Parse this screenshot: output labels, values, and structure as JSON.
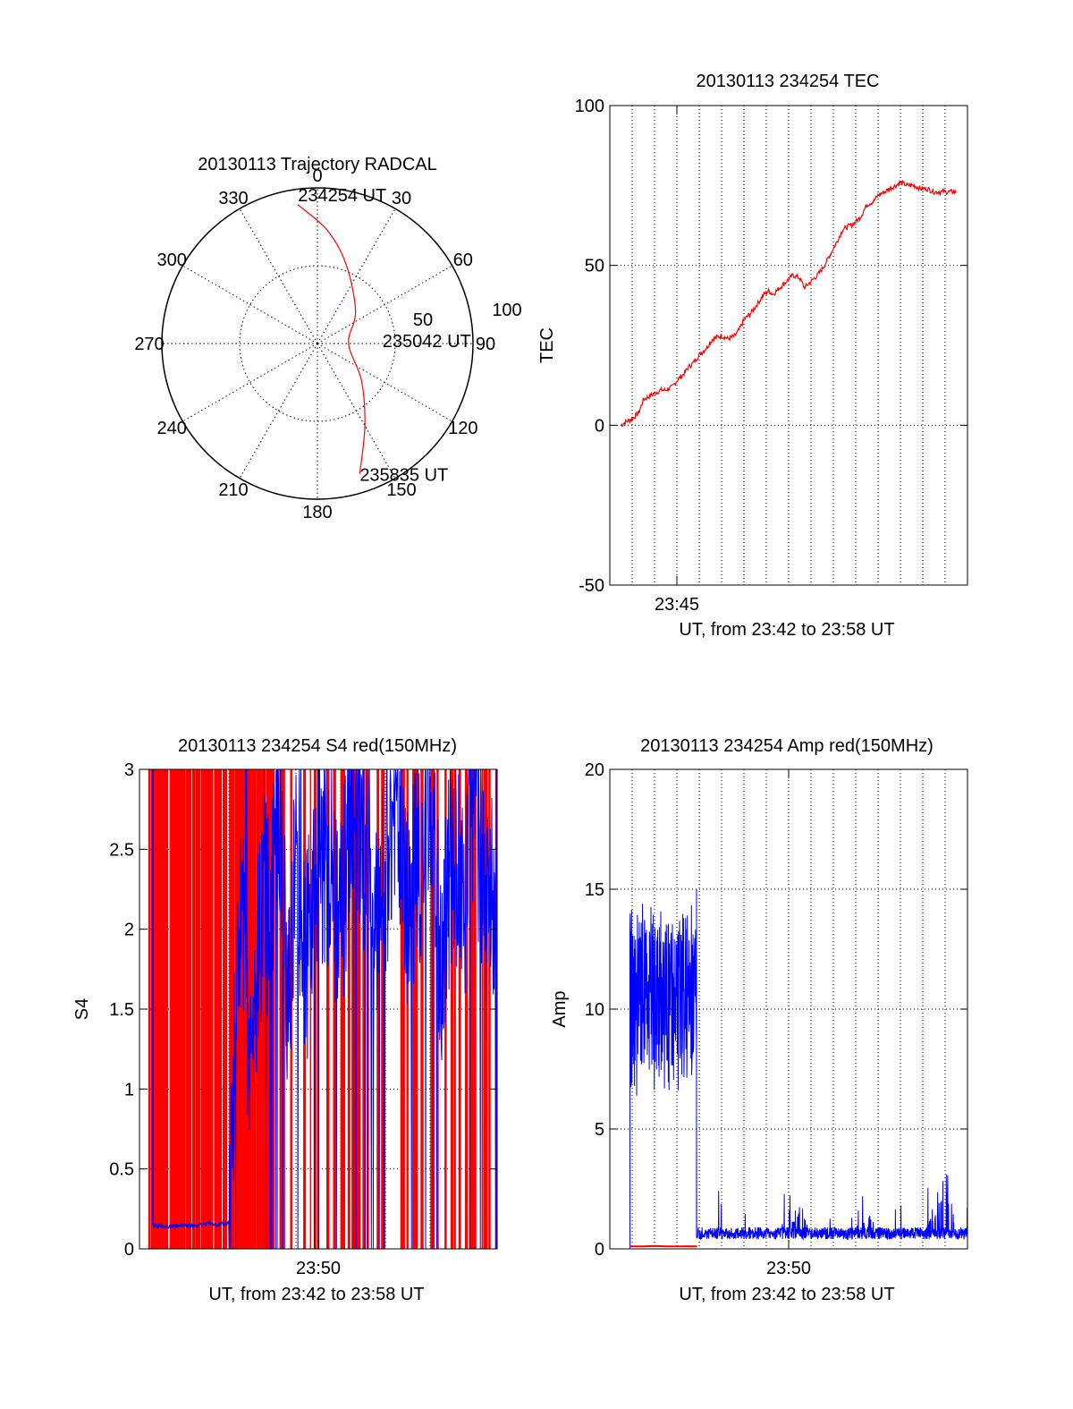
{
  "colors": {
    "red": "#ff0000",
    "blue": "#0000ff",
    "grid": "#000000"
  },
  "chart_data": [
    {
      "id": "trajectory",
      "type": "polar",
      "title": "20130113 Trajectory RADCAL",
      "angle_labels": [
        "0",
        "30",
        "60",
        "90",
        "120",
        "150",
        "180",
        "210",
        "240",
        "270",
        "300",
        "330"
      ],
      "radial_labels": [
        "50",
        "100"
      ],
      "rmax": 100,
      "trajectory": [
        {
          "az": 352,
          "r": 90
        },
        {
          "az": 5,
          "r": 73
        },
        {
          "az": 20,
          "r": 54
        },
        {
          "az": 50,
          "r": 32
        },
        {
          "az": 90,
          "r": 20
        },
        {
          "az": 130,
          "r": 37
        },
        {
          "az": 150,
          "r": 61
        },
        {
          "az": 162,
          "r": 88
        }
      ],
      "annotations": [
        {
          "text": "234254 UT",
          "az": 352,
          "r": 90
        },
        {
          "text": "235042 UT",
          "az": 90,
          "r": 20
        },
        {
          "text": "235835 UT",
          "az": 162,
          "r": 88
        }
      ]
    },
    {
      "id": "tec",
      "type": "line",
      "title": "20130113 234254 TEC",
      "xlabel": "UT, from 23:42 to 23:58 UT",
      "ylabel": "TEC",
      "ylim": [
        -50,
        100
      ],
      "yticks": [
        -50,
        0,
        50,
        100
      ],
      "xtick_label": "23:45",
      "series": [
        {
          "x": [
            0.5,
            0.7,
            1.0,
            1.3,
            1.5,
            2.0,
            2.3,
            2.5,
            2.8,
            3.0,
            3.3,
            3.5,
            3.8,
            4.0,
            4.3,
            4.6,
            5.0,
            5.3,
            5.6,
            5.8,
            6.0,
            6.3,
            6.6,
            6.9,
            7.1,
            7.3,
            7.6,
            7.9,
            8.2,
            8.5,
            8.7,
            9.0,
            9.3,
            9.6,
            9.9,
            10.2,
            10.4,
            10.6,
            10.9,
            11.2,
            11.5,
            11.8,
            12.0,
            12.3,
            12.5,
            12.8,
            13.0,
            13.3,
            13.6,
            13.9,
            14.2,
            14.5,
            14.7,
            15.0,
            15.3,
            15.5
          ],
          "y": [
            0,
            1,
            2,
            4,
            8,
            10,
            11,
            11,
            12,
            14,
            16,
            18,
            20,
            22,
            24,
            27,
            28,
            27,
            28,
            30,
            33,
            35,
            38,
            41,
            42,
            41,
            43,
            45,
            47,
            46,
            43,
            45,
            47,
            50,
            54,
            58,
            61,
            62,
            63,
            65,
            69,
            70,
            72,
            73,
            74,
            75,
            76,
            75,
            75,
            74,
            74,
            73,
            73,
            73,
            73,
            73
          ]
        }
      ]
    },
    {
      "id": "s4",
      "type": "line",
      "title": "20130113 234254 S4 red(150MHz)",
      "xlabel": "UT, from 23:42 to 23:58 UT",
      "ylabel": "S4",
      "ylim": [
        0,
        3
      ],
      "yticks": [
        0,
        0.5,
        1,
        1.5,
        2,
        2.5,
        3
      ],
      "ytick_labels": [
        "0",
        "0.5",
        "1",
        "1.5",
        "2",
        "2.5",
        "3"
      ],
      "xtick_label": "23:50",
      "series": [
        {
          "color": "blue",
          "x": [
            0.6,
            1.0,
            1.5,
            2.0,
            2.5,
            3.0,
            3.5,
            4.0,
            4.2,
            4.4,
            4.6,
            4.8,
            5.0,
            5.2,
            5.5,
            5.8,
            6.0,
            6.3,
            6.6,
            7.0,
            7.5,
            8.0,
            8.5,
            9.0,
            9.5,
            10.0,
            10.5,
            11.0,
            11.5,
            12.0,
            12.5,
            13.0,
            13.5,
            14.0,
            14.5,
            15.0,
            15.5,
            16.0
          ],
          "y": [
            0.15,
            0.14,
            0.14,
            0.15,
            0.14,
            0.16,
            0.15,
            0.16,
            1.0,
            1.8,
            2.1,
            1.2,
            1.1,
            1.5,
            2.3,
            2.0,
            2.5,
            2.8,
            1.5,
            2.4,
            1.8,
            2.6,
            2.2,
            2.0,
            2.8,
            2.5,
            1.9,
            2.3,
            2.7,
            2.1,
            2.4,
            2.8,
            1.8,
            2.5,
            2.2,
            2.9,
            2.0,
            2.4
          ]
        }
      ]
    },
    {
      "id": "amp",
      "type": "line",
      "title": "20130113 234254 Amp red(150MHz)",
      "xlabel": "UT, from 23:42 to 23:58 UT",
      "ylabel": "Amp",
      "ylim": [
        0,
        20
      ],
      "yticks": [
        0,
        5,
        10,
        15,
        20
      ],
      "xtick_label": "23:50",
      "series": [
        {
          "color": "blue",
          "x": [
            0.9,
            1.1,
            1.3,
            1.5,
            1.7,
            2.0,
            2.3,
            2.6,
            2.9,
            3.2,
            3.5,
            3.8,
            3.9,
            4.2,
            4.6,
            5.0,
            5.5,
            6.0,
            6.5,
            7.0,
            7.5,
            8.0,
            8.5,
            9.0,
            9.5,
            10.0,
            10.5,
            11.0,
            11.5,
            12.0,
            12.5,
            13.0,
            13.5,
            14.0,
            14.5,
            15.0,
            15.5,
            16.0
          ],
          "y": [
            12.5,
            10.0,
            13.0,
            9.0,
            11.5,
            10.5,
            14.0,
            9.5,
            12.0,
            10.0,
            11.0,
            9.0,
            1.0,
            0.9,
            0.7,
            0.6,
            0.5,
            0.8,
            0.6,
            1.2,
            0.7,
            0.6,
            2.5,
            0.6,
            0.5,
            0.7,
            0.6,
            0.8,
            1.5,
            0.7,
            0.6,
            1.0,
            0.6,
            0.8,
            2.0,
            4.0,
            0.7,
            0.9
          ]
        },
        {
          "color": "red",
          "x": [
            0.9,
            1.5,
            2.0,
            2.5,
            3.0,
            3.5,
            3.9
          ],
          "y": [
            0.1,
            0.1,
            0.12,
            0.1,
            0.1,
            0.11,
            0.1
          ]
        }
      ]
    }
  ]
}
